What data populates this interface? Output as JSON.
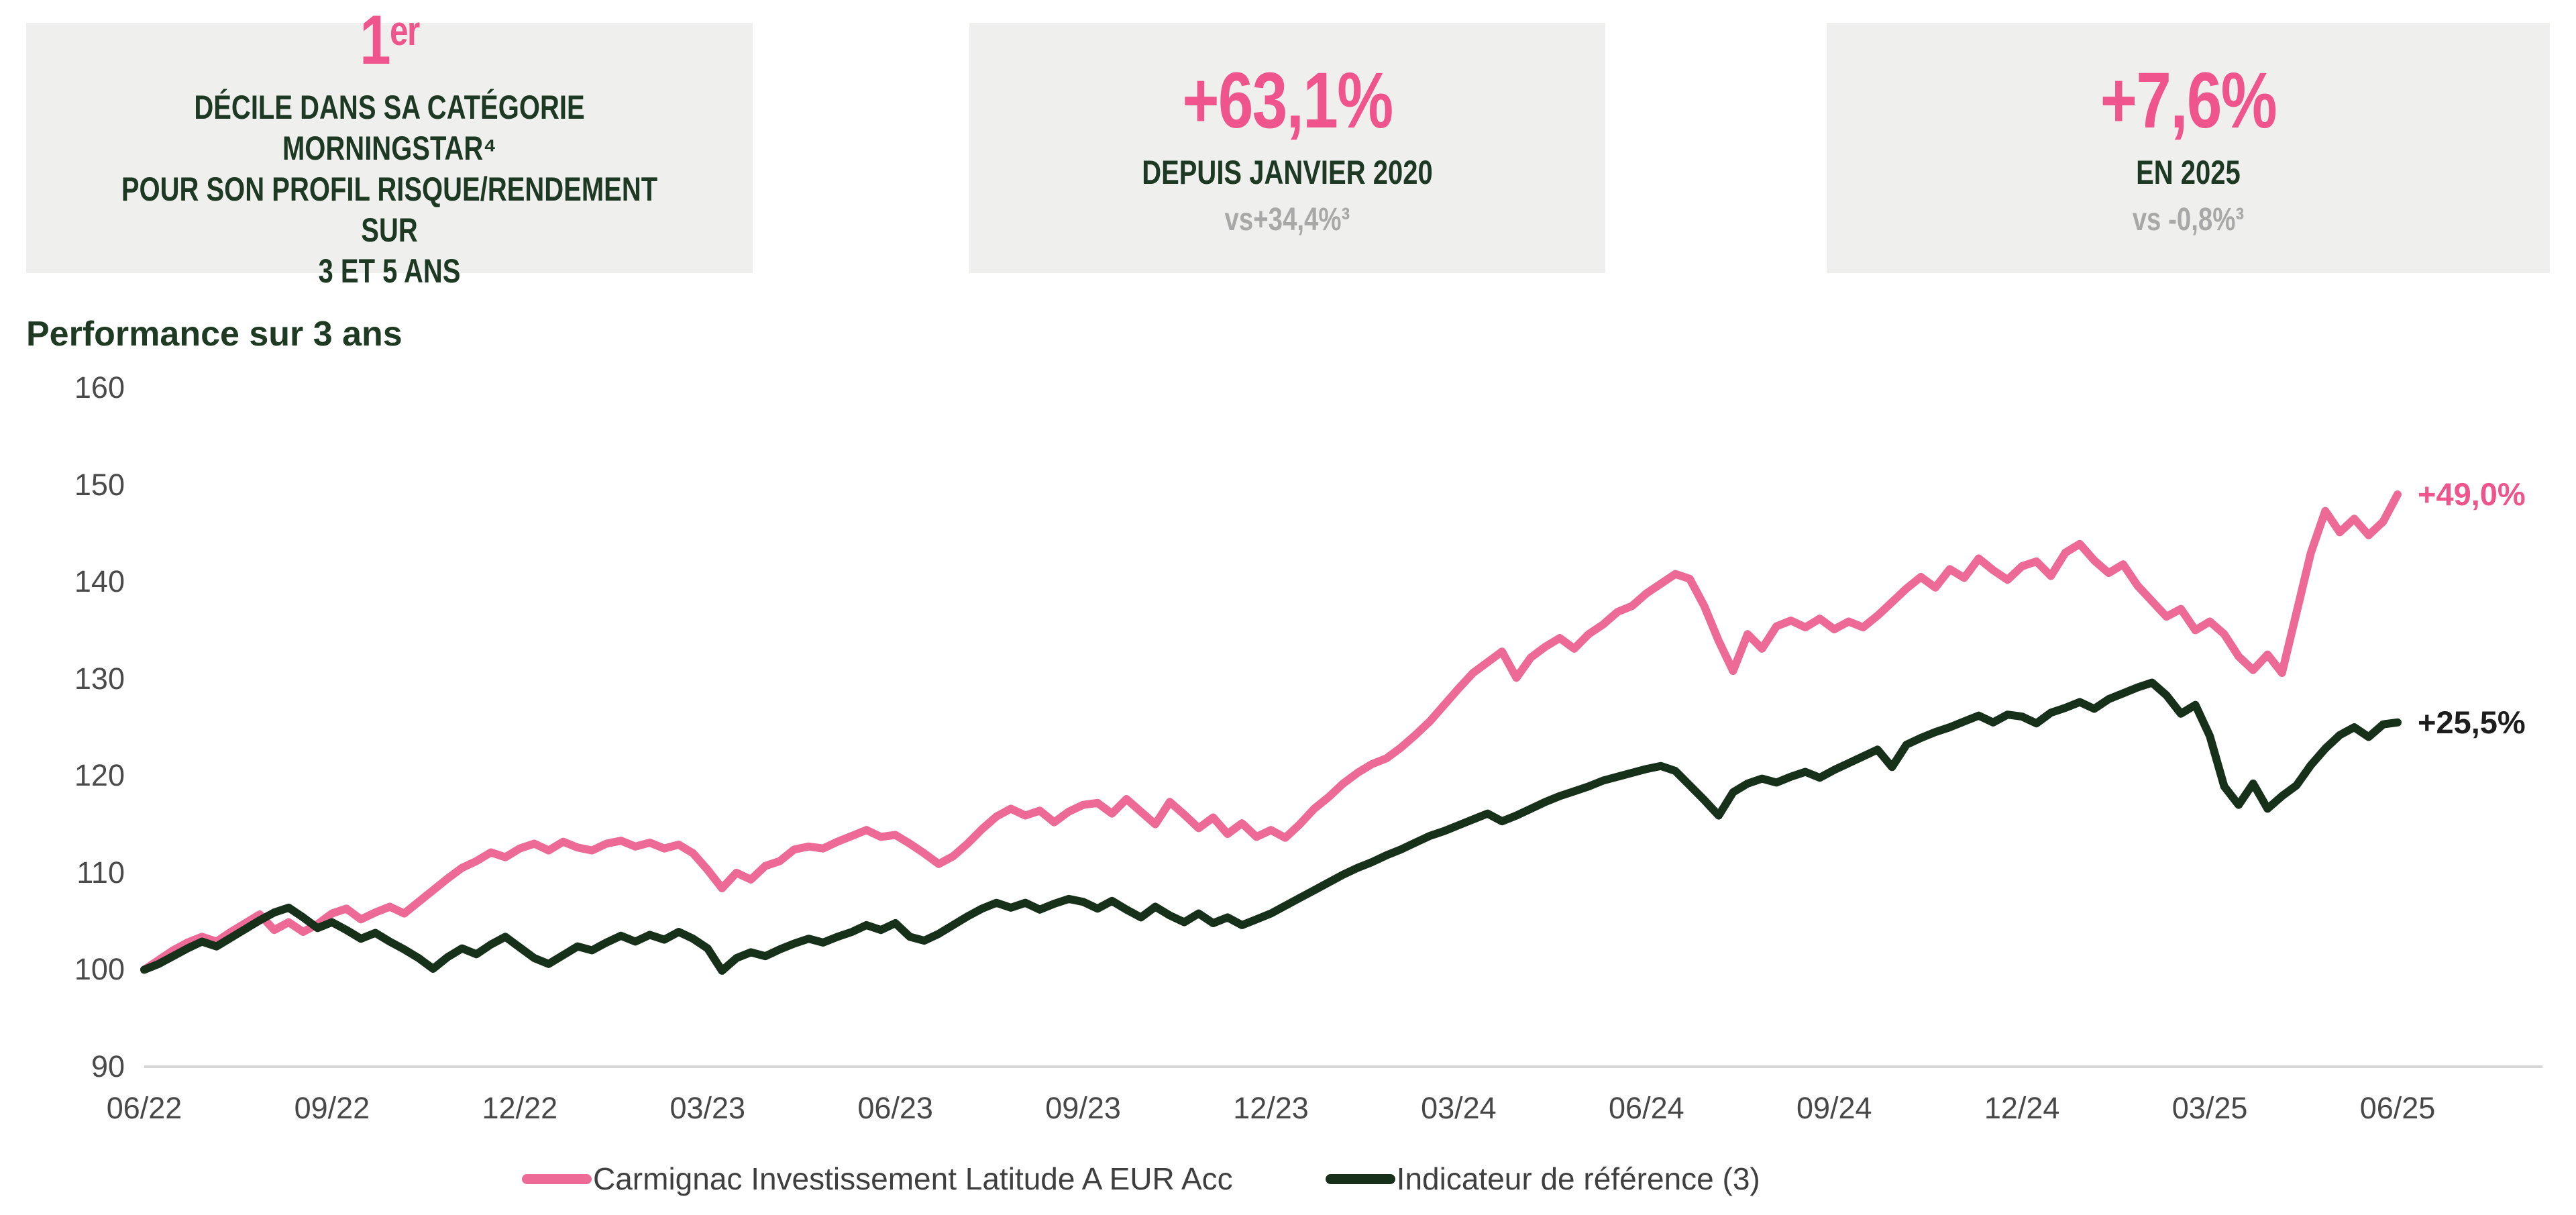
{
  "stats": [
    {
      "value": "1",
      "value_sup": "er",
      "lines": [
        "DÉCILE DANS SA CATÉGORIE MORNINGSTAR⁴",
        "POUR SON PROFIL RISQUE/RENDEMENT SUR",
        "3 ET 5 ANS"
      ]
    },
    {
      "value": "+63,1%",
      "label": "DEPUIS JANVIER 2020",
      "vs": "vs+34,4%³"
    },
    {
      "value": "+7,6%",
      "label": "EN 2025",
      "vs": "vs -0,8%³"
    }
  ],
  "chart_data": {
    "type": "line",
    "title": "Performance sur 3 ans",
    "xlabel": "",
    "ylabel": "",
    "ylim": [
      90,
      160
    ],
    "grid": false,
    "legend_position": "bottom",
    "y_ticks": [
      160,
      150,
      140,
      130,
      120,
      110,
      100,
      90
    ],
    "x_labels": [
      "06/22",
      "09/22",
      "12/22",
      "03/23",
      "06/23",
      "09/23",
      "12/23",
      "03/24",
      "06/24",
      "09/24",
      "12/24",
      "03/25",
      "06/25"
    ],
    "series": [
      {
        "name": "Carmignac Investissement Latitude A EUR Acc",
        "color": "#EE6A96",
        "end_label": "+49,0%",
        "end_label_color": "#F0548C",
        "values": [
          100.0,
          101.0,
          102.0,
          102.8,
          103.4,
          102.9,
          103.9,
          104.8,
          105.7,
          104.1,
          104.9,
          103.9,
          104.7,
          105.8,
          106.3,
          105.2,
          105.9,
          106.5,
          105.8,
          107.0,
          108.2,
          109.4,
          110.5,
          111.2,
          112.1,
          111.6,
          112.5,
          113.0,
          112.3,
          113.2,
          112.6,
          112.3,
          113.0,
          113.3,
          112.7,
          113.1,
          112.5,
          112.9,
          112.0,
          110.3,
          108.4,
          110.0,
          109.3,
          110.7,
          111.2,
          112.4,
          112.7,
          112.5,
          113.2,
          113.8,
          114.4,
          113.7,
          113.9,
          113.0,
          112.0,
          110.9,
          111.7,
          113.0,
          114.5,
          115.8,
          116.6,
          115.9,
          116.4,
          115.2,
          116.3,
          117.0,
          117.2,
          116.1,
          117.6,
          116.3,
          115.0,
          117.3,
          116.0,
          114.6,
          115.7,
          114.0,
          115.1,
          113.7,
          114.4,
          113.6,
          115.0,
          116.6,
          117.8,
          119.2,
          120.3,
          121.2,
          121.8,
          122.9,
          124.2,
          125.6,
          127.3,
          129.0,
          130.6,
          131.7,
          132.8,
          130.1,
          132.2,
          133.3,
          134.2,
          133.1,
          134.6,
          135.6,
          136.9,
          137.5,
          138.8,
          139.8,
          140.8,
          140.3,
          137.5,
          133.9,
          130.8,
          134.6,
          133.1,
          135.4,
          136.0,
          135.3,
          136.2,
          135.1,
          135.9,
          135.3,
          136.5,
          137.9,
          139.3,
          140.5,
          139.4,
          141.3,
          140.4,
          142.4,
          141.2,
          140.2,
          141.6,
          142.1,
          140.6,
          143.0,
          143.9,
          142.2,
          140.9,
          141.8,
          139.6,
          138.0,
          136.4,
          137.2,
          135.0,
          135.9,
          134.6,
          132.3,
          130.9,
          132.5,
          130.6,
          136.8,
          143.0,
          147.3,
          145.1,
          146.5,
          144.8,
          146.2,
          149.0
        ]
      },
      {
        "name": "Indicateur de référence (3)",
        "color": "#16301A",
        "end_label": "+25,5%",
        "end_label_color": "#1D1D1D",
        "values": [
          100.0,
          100.6,
          101.4,
          102.2,
          102.9,
          102.4,
          103.3,
          104.2,
          105.1,
          105.9,
          106.4,
          105.4,
          104.3,
          104.9,
          104.1,
          103.2,
          103.8,
          102.9,
          102.1,
          101.2,
          100.1,
          101.3,
          102.2,
          101.6,
          102.6,
          103.4,
          102.3,
          101.2,
          100.6,
          101.5,
          102.4,
          102.0,
          102.8,
          103.5,
          102.9,
          103.6,
          103.1,
          103.9,
          103.2,
          102.2,
          99.9,
          101.2,
          101.8,
          101.4,
          102.1,
          102.7,
          103.2,
          102.8,
          103.4,
          103.9,
          104.6,
          104.1,
          104.8,
          103.4,
          103.0,
          103.7,
          104.6,
          105.5,
          106.3,
          106.9,
          106.4,
          106.9,
          106.2,
          106.8,
          107.3,
          107.0,
          106.3,
          107.1,
          106.2,
          105.4,
          106.5,
          105.6,
          104.9,
          105.8,
          104.8,
          105.4,
          104.6,
          105.2,
          105.8,
          106.6,
          107.4,
          108.2,
          109.0,
          109.8,
          110.5,
          111.1,
          111.8,
          112.4,
          113.1,
          113.8,
          114.3,
          114.9,
          115.5,
          116.1,
          115.3,
          115.9,
          116.6,
          117.3,
          117.9,
          118.4,
          118.9,
          119.5,
          119.9,
          120.3,
          120.7,
          121.0,
          120.5,
          119.0,
          117.5,
          115.9,
          118.3,
          119.2,
          119.7,
          119.3,
          119.9,
          120.4,
          119.8,
          120.6,
          121.3,
          122.0,
          122.7,
          120.9,
          123.2,
          123.9,
          124.5,
          125.0,
          125.6,
          126.2,
          125.5,
          126.3,
          126.1,
          125.4,
          126.5,
          127.0,
          127.6,
          126.9,
          127.9,
          128.5,
          129.1,
          129.6,
          128.3,
          126.4,
          127.3,
          124.1,
          118.9,
          117.0,
          119.2,
          116.6,
          117.9,
          119.0,
          121.1,
          122.8,
          124.2,
          125.0,
          124.0,
          125.3,
          125.5
        ]
      }
    ]
  },
  "palette": {
    "background": "#FFFFFF",
    "stat_box_bg": "#EFEFED",
    "stat_pink": "#F0548C",
    "stat_green": "#1D3823",
    "stat_gray": "#A8A8A8",
    "axis_line": "#D6D6D6",
    "tick_text": "#4A4A4A",
    "legend_text": "#3F3F3F"
  }
}
